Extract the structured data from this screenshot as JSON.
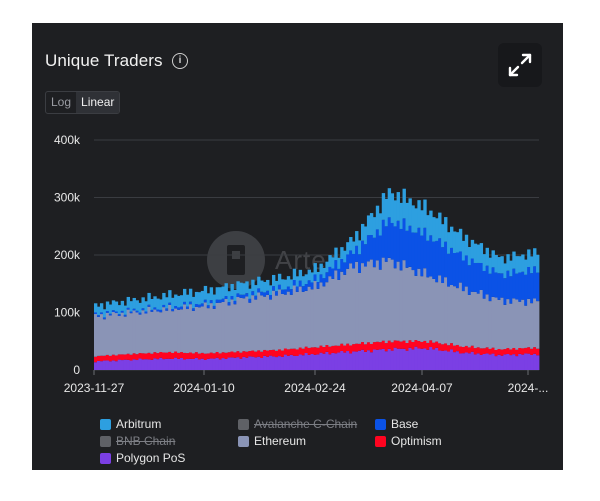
{
  "header": {
    "title": "Unique Traders",
    "info_icon": "info-icon",
    "expand_icon": "expand-icon"
  },
  "scale_toggle": {
    "options": [
      "Log",
      "Linear"
    ],
    "selected": "Linear"
  },
  "watermark": {
    "text": "Artemis"
  },
  "legend": [
    {
      "name": "Arbitrum",
      "color": "#2d9fe0",
      "enabled": true
    },
    {
      "name": "Avalanche C-Chain",
      "color": "#e84142",
      "enabled": false
    },
    {
      "name": "Base",
      "color": "#0b52e6",
      "enabled": true
    },
    {
      "name": "BNB Chain",
      "color": "#f0b90b",
      "enabled": false
    },
    {
      "name": "Ethereum",
      "color": "#8a94b6",
      "enabled": true
    },
    {
      "name": "Optimism",
      "color": "#ff0420",
      "enabled": true
    },
    {
      "name": "Polygon PoS",
      "color": "#7b3fe4",
      "enabled": true
    }
  ],
  "chart_data": {
    "type": "area",
    "stacked": true,
    "title": "Unique Traders",
    "x_type": "date",
    "x_tick_labels": [
      "2023-11-27",
      "2024-01-10",
      "2024-02-24",
      "2024-04-07",
      "2024-..."
    ],
    "y_tick_labels": [
      "0",
      "100k",
      "200k",
      "300k",
      "400k"
    ],
    "ylim": [
      0,
      400000
    ],
    "scale": "linear",
    "grid": true,
    "legend_position": "bottom",
    "x": [
      "2023-11-27",
      "2023-12-11",
      "2023-12-25",
      "2024-01-10",
      "2024-01-24",
      "2024-02-07",
      "2024-02-24",
      "2024-03-09",
      "2024-03-23",
      "2024-04-07",
      "2024-04-21",
      "2024-05-05",
      "2024-05-16"
    ],
    "series": [
      {
        "name": "Polygon PoS",
        "values": [
          15000,
          18000,
          20000,
          19000,
          22000,
          24000,
          28000,
          32000,
          36000,
          38000,
          30000,
          26000,
          28000
        ]
      },
      {
        "name": "Optimism",
        "values": [
          9000,
          10000,
          11000,
          10000,
          10000,
          11000,
          12000,
          13000,
          14000,
          12000,
          11000,
          10000,
          11000
        ]
      },
      {
        "name": "Ethereum",
        "values": [
          70000,
          72000,
          75000,
          82000,
          92000,
          98000,
          105000,
          135000,
          140000,
          115000,
          100000,
          85000,
          80000
        ]
      },
      {
        "name": "Base",
        "values": [
          3000,
          3000,
          4000,
          5000,
          6000,
          8000,
          12000,
          25000,
          70000,
          70000,
          55000,
          45000,
          55000
        ]
      },
      {
        "name": "Arbitrum",
        "values": [
          15000,
          18000,
          20000,
          22000,
          20000,
          18000,
          18000,
          22000,
          50000,
          45000,
          35000,
          28000,
          30000
        ]
      }
    ]
  }
}
